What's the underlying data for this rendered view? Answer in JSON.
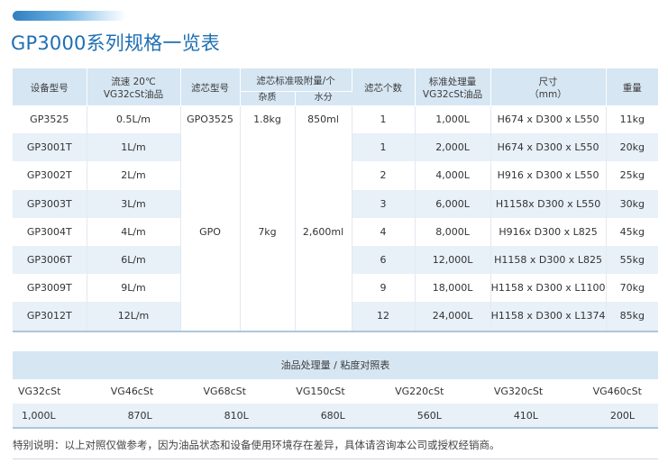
{
  "title": "GP3000系列规格一览表",
  "spec_table": {
    "headers": {
      "model": "设备型号",
      "flow_line1": "流速 20℃",
      "flow_line2": "VG32cSt油品",
      "element_model": "滤芯型号",
      "capacity": "滤芯标准吸附量/个",
      "capacity_dirt": "杂质",
      "capacity_water": "水分",
      "element_count": "滤芯个数",
      "throughput_line1": "标准处理量",
      "throughput_line2": "VG32cSt油品",
      "size_line1": "尺寸",
      "size_line2": "（mm）",
      "weight": "重量"
    },
    "rows": [
      {
        "model": "GP3525",
        "flow": "0.5L/m",
        "element": "GPO3525",
        "dirt": "1.8kg",
        "water": "850ml",
        "count": "1",
        "throughput": "1,000L",
        "size": "H674 x D300 x L550",
        "weight": "11kg"
      },
      {
        "model": "GP3001T",
        "flow": "1L/m",
        "element": "",
        "dirt": "",
        "water": "",
        "count": "1",
        "throughput": "2,000L",
        "size": "H674 x D300 x L550",
        "weight": "20kg"
      },
      {
        "model": "GP3002T",
        "flow": "2L/m",
        "element": "",
        "dirt": "",
        "water": "",
        "count": "2",
        "throughput": "4,000L",
        "size": "H916 x D300 x L550",
        "weight": "25kg"
      },
      {
        "model": "GP3003T",
        "flow": "3L/m",
        "element": "",
        "dirt": "",
        "water": "",
        "count": "3",
        "throughput": "6,000L",
        "size": "H1158x D300 x L550",
        "weight": "30kg"
      },
      {
        "model": "GP3004T",
        "flow": "4L/m",
        "element": "GPO",
        "dirt": "7kg",
        "water": "2,600ml",
        "count": "4",
        "throughput": "8,000L",
        "size": "H916x D300 x L825",
        "weight": "45kg"
      },
      {
        "model": "GP3006T",
        "flow": "6L/m",
        "element": "",
        "dirt": "",
        "water": "",
        "count": "6",
        "throughput": "12,000L",
        "size": "H1158 x D300 x L825",
        "weight": "55kg"
      },
      {
        "model": "GP3009T",
        "flow": "9L/m",
        "element": "",
        "dirt": "",
        "water": "",
        "count": "9",
        "throughput": "18,000L",
        "size": "H1158 x D300 x L1100",
        "weight": "70kg"
      },
      {
        "model": "GP3012T",
        "flow": "12L/m",
        "element": "",
        "dirt": "",
        "water": "",
        "count": "12",
        "throughput": "24,000L",
        "size": "H1158 x D300 x L1374",
        "weight": "85kg"
      }
    ]
  },
  "viscosity_table": {
    "title": "油品处理量 / 粘度对照表",
    "grades": [
      "VG32cSt",
      "VG46cSt",
      "VG68cSt",
      "VG150cSt",
      "VG220cSt",
      "VG320cSt",
      "VG460cSt"
    ],
    "amounts": [
      "1,000L",
      "870L",
      "810L",
      "680L",
      "560L",
      "410L",
      "200L"
    ]
  },
  "note": "特别说明：以上对照仅做参考，因为油品状态和设备使用环境存在差异，具体请咨询本公司或授权经销商。",
  "colors": {
    "title": "#1f6fb3",
    "header_bg": "#d6e6f3",
    "row_alt_bg": "#e8f0f8"
  }
}
